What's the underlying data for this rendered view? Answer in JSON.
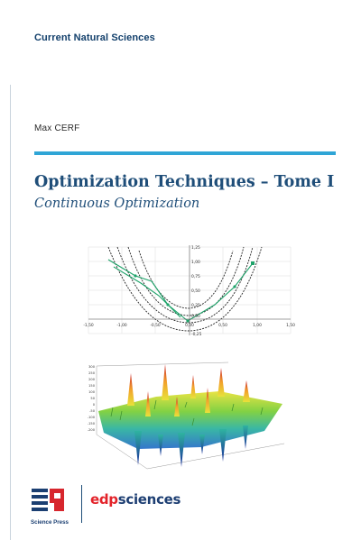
{
  "cover": {
    "series": "Current Natural Sciences",
    "author": "Max CERF",
    "title": "Optimization Techniques – Tome I",
    "subtitle": "Continuous Optimization"
  },
  "figure_top": {
    "x_ticks": [
      "-1,50",
      "-1,00",
      "-0,50",
      "0,00",
      "0,50",
      "1,00",
      "1,50"
    ],
    "y_ticks": [
      "1,25",
      "1,00",
      "0,75",
      "0,50",
      "0,25",
      "0,00",
      "-0,25"
    ]
  },
  "figure_bottom": {
    "z_ticks": [
      "300",
      "250",
      "200",
      "150",
      "100",
      "50",
      "0",
      "-50",
      "-100",
      "-150",
      "-200"
    ]
  },
  "publishers": {
    "science_press_caption": "Science Press",
    "edp_logo_text": "edp",
    "sciences_logo_text": "sciences",
    "edp_color": "#e3232a",
    "sciences_color": "#1e3f73",
    "science_press_blue": "#1b3f72",
    "science_press_red": "#d7262d"
  },
  "colors": {
    "accent_bar": "#2fa5d6",
    "title": "#1f4e79",
    "series": "#123f6b"
  }
}
